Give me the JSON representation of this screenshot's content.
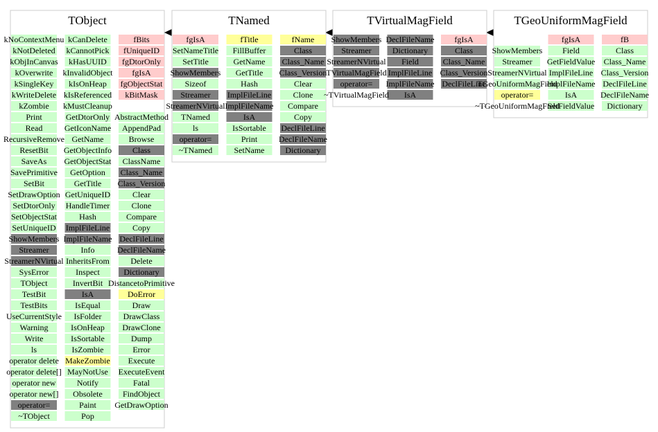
{
  "classes": [
    {
      "title": "TObject",
      "columns": [
        [
          {
            "text": "kNoContextMenu",
            "color": "#ccffcc"
          },
          {
            "text": "kNotDeleted",
            "color": "#ccffcc"
          },
          {
            "text": "kObjInCanvas",
            "color": "#ccffcc"
          },
          {
            "text": "kOverwrite",
            "color": "#ccffcc"
          },
          {
            "text": "kSingleKey",
            "color": "#ccffcc"
          },
          {
            "text": "kWriteDelete",
            "color": "#ccffcc"
          },
          {
            "text": "kZombie",
            "color": "#ccffcc"
          },
          {
            "text": "Print",
            "color": "#ccffcc"
          },
          {
            "text": "Read",
            "color": "#ccffcc"
          },
          {
            "text": "RecursiveRemove",
            "color": "#ccffcc"
          },
          {
            "text": "ResetBit",
            "color": "#ccffcc"
          },
          {
            "text": "SaveAs",
            "color": "#ccffcc"
          },
          {
            "text": "SavePrimitive",
            "color": "#ccffcc"
          },
          {
            "text": "SetBit",
            "color": "#ccffcc"
          },
          {
            "text": "SetDrawOption",
            "color": "#ccffcc"
          },
          {
            "text": "SetDtorOnly",
            "color": "#ccffcc"
          },
          {
            "text": "SetObjectStat",
            "color": "#ccffcc"
          },
          {
            "text": "SetUniqueID",
            "color": "#ccffcc"
          },
          {
            "text": "ShowMembers",
            "color": "#808080"
          },
          {
            "text": "Streamer",
            "color": "#808080"
          },
          {
            "text": "StreamerNVirtual",
            "color": "#808080"
          },
          {
            "text": "SysError",
            "color": "#ccffcc"
          },
          {
            "text": "TObject",
            "color": "#ccffcc"
          },
          {
            "text": "TestBit",
            "color": "#ccffcc"
          },
          {
            "text": "TestBits",
            "color": "#ccffcc"
          },
          {
            "text": "UseCurrentStyle",
            "color": "#ccffcc"
          },
          {
            "text": "Warning",
            "color": "#ccffcc"
          },
          {
            "text": "Write",
            "color": "#ccffcc"
          },
          {
            "text": "ls",
            "color": "#ccffcc"
          },
          {
            "text": "operator delete",
            "color": "#ccffcc"
          },
          {
            "text": "operator delete[]",
            "color": "#ccffcc"
          },
          {
            "text": "operator new",
            "color": "#ccffcc"
          },
          {
            "text": "operator new[]",
            "color": "#ccffcc"
          },
          {
            "text": "operator=",
            "color": "#808080"
          },
          {
            "text": "~TObject",
            "color": "#ccffcc"
          }
        ],
        [
          {
            "text": "kCanDelete",
            "color": "#ccffcc"
          },
          {
            "text": "kCannotPick",
            "color": "#ccffcc"
          },
          {
            "text": "kHasUUID",
            "color": "#ccffcc"
          },
          {
            "text": "kInvalidObject",
            "color": "#ccffcc"
          },
          {
            "text": "kIsOnHeap",
            "color": "#ccffcc"
          },
          {
            "text": "kIsReferenced",
            "color": "#ccffcc"
          },
          {
            "text": "kMustCleanup",
            "color": "#ccffcc"
          },
          {
            "text": "GetDtorOnly",
            "color": "#ccffcc"
          },
          {
            "text": "GetIconName",
            "color": "#ccffcc"
          },
          {
            "text": "GetName",
            "color": "#ccffcc"
          },
          {
            "text": "GetObjectInfo",
            "color": "#ccffcc"
          },
          {
            "text": "GetObjectStat",
            "color": "#ccffcc"
          },
          {
            "text": "GetOption",
            "color": "#ccffcc"
          },
          {
            "text": "GetTitle",
            "color": "#ccffcc"
          },
          {
            "text": "GetUniqueID",
            "color": "#ccffcc"
          },
          {
            "text": "HandleTimer",
            "color": "#ccffcc"
          },
          {
            "text": "Hash",
            "color": "#ccffcc"
          },
          {
            "text": "ImplFileLine",
            "color": "#808080"
          },
          {
            "text": "ImplFileName",
            "color": "#808080"
          },
          {
            "text": "Info",
            "color": "#ccffcc"
          },
          {
            "text": "InheritsFrom",
            "color": "#ccffcc"
          },
          {
            "text": "Inspect",
            "color": "#ccffcc"
          },
          {
            "text": "InvertBit",
            "color": "#ccffcc"
          },
          {
            "text": "IsA",
            "color": "#808080"
          },
          {
            "text": "IsEqual",
            "color": "#ccffcc"
          },
          {
            "text": "IsFolder",
            "color": "#ccffcc"
          },
          {
            "text": "IsOnHeap",
            "color": "#ccffcc"
          },
          {
            "text": "IsSortable",
            "color": "#ccffcc"
          },
          {
            "text": "IsZombie",
            "color": "#ccffcc"
          },
          {
            "text": "MakeZombie",
            "color": "#ffff99"
          },
          {
            "text": "MayNotUse",
            "color": "#ccffcc"
          },
          {
            "text": "Notify",
            "color": "#ccffcc"
          },
          {
            "text": "Obsolete",
            "color": "#ccffcc"
          },
          {
            "text": "Paint",
            "color": "#ccffcc"
          },
          {
            "text": "Pop",
            "color": "#ccffcc"
          }
        ],
        [
          {
            "text": "fBits",
            "color": "#ffcccc"
          },
          {
            "text": "fUniqueID",
            "color": "#ffcccc"
          },
          {
            "text": "fgDtorOnly",
            "color": "#ffcccc"
          },
          {
            "text": "fgIsA",
            "color": "#ffcccc"
          },
          {
            "text": "fgObjectStat",
            "color": "#ffcccc"
          },
          {
            "text": "kBitMask",
            "color": "#ffcccc"
          },
          null,
          {
            "text": "AbstractMethod",
            "color": "#ccffcc"
          },
          {
            "text": "AppendPad",
            "color": "#ccffcc"
          },
          {
            "text": "Browse",
            "color": "#ccffcc"
          },
          {
            "text": "Class",
            "color": "#808080"
          },
          {
            "text": "ClassName",
            "color": "#ccffcc"
          },
          {
            "text": "Class_Name",
            "color": "#808080"
          },
          {
            "text": "Class_Version",
            "color": "#808080"
          },
          {
            "text": "Clear",
            "color": "#ccffcc"
          },
          {
            "text": "Clone",
            "color": "#ccffcc"
          },
          {
            "text": "Compare",
            "color": "#ccffcc"
          },
          {
            "text": "Copy",
            "color": "#ccffcc"
          },
          {
            "text": "DeclFileLine",
            "color": "#808080"
          },
          {
            "text": "DeclFileName",
            "color": "#808080"
          },
          {
            "text": "Delete",
            "color": "#ccffcc"
          },
          {
            "text": "Dictionary",
            "color": "#808080"
          },
          {
            "text": "DistancetoPrimitive",
            "color": "#ccffcc"
          },
          {
            "text": "DoError",
            "color": "#ffff99"
          },
          {
            "text": "Draw",
            "color": "#ccffcc"
          },
          {
            "text": "DrawClass",
            "color": "#ccffcc"
          },
          {
            "text": "DrawClone",
            "color": "#ccffcc"
          },
          {
            "text": "Dump",
            "color": "#ccffcc"
          },
          {
            "text": "Error",
            "color": "#ccffcc"
          },
          {
            "text": "Execute",
            "color": "#ccffcc"
          },
          {
            "text": "ExecuteEvent",
            "color": "#ccffcc"
          },
          {
            "text": "Fatal",
            "color": "#ccffcc"
          },
          {
            "text": "FindObject",
            "color": "#ccffcc"
          },
          {
            "text": "GetDrawOption",
            "color": "#ccffcc"
          }
        ]
      ]
    },
    {
      "title": "TNamed",
      "columns": [
        [
          {
            "text": "fgIsA",
            "color": "#ffcccc"
          },
          {
            "text": "SetNameTitle",
            "color": "#ccffcc"
          },
          {
            "text": "SetTitle",
            "color": "#ccffcc"
          },
          {
            "text": "ShowMembers",
            "color": "#808080"
          },
          {
            "text": "Sizeof",
            "color": "#ccffcc"
          },
          {
            "text": "Streamer",
            "color": "#808080"
          },
          {
            "text": "StreamerNVirtual",
            "color": "#808080"
          },
          {
            "text": "TNamed",
            "color": "#ccffcc"
          },
          {
            "text": "ls",
            "color": "#ccffcc"
          },
          {
            "text": "operator=",
            "color": "#808080"
          },
          {
            "text": "~TNamed",
            "color": "#ccffcc"
          }
        ],
        [
          {
            "text": "fTitle",
            "color": "#ffff99"
          },
          {
            "text": "FillBuffer",
            "color": "#ccffcc"
          },
          {
            "text": "GetName",
            "color": "#ccffcc"
          },
          {
            "text": "GetTitle",
            "color": "#ccffcc"
          },
          {
            "text": "Hash",
            "color": "#ccffcc"
          },
          {
            "text": "ImplFileLine",
            "color": "#808080"
          },
          {
            "text": "ImplFileName",
            "color": "#808080"
          },
          {
            "text": "IsA",
            "color": "#808080"
          },
          {
            "text": "IsSortable",
            "color": "#ccffcc"
          },
          {
            "text": "Print",
            "color": "#ccffcc"
          },
          {
            "text": "SetName",
            "color": "#ccffcc"
          }
        ],
        [
          {
            "text": "fName",
            "color": "#ffff99"
          },
          {
            "text": "Class",
            "color": "#808080"
          },
          {
            "text": "Class_Name",
            "color": "#808080"
          },
          {
            "text": "Class_Version",
            "color": "#808080"
          },
          {
            "text": "Clear",
            "color": "#ccffcc"
          },
          {
            "text": "Clone",
            "color": "#ccffcc"
          },
          {
            "text": "Compare",
            "color": "#ccffcc"
          },
          {
            "text": "Copy",
            "color": "#ccffcc"
          },
          {
            "text": "DeclFileLine",
            "color": "#808080"
          },
          {
            "text": "DeclFileName",
            "color": "#808080"
          },
          {
            "text": "Dictionary",
            "color": "#808080"
          }
        ]
      ]
    },
    {
      "title": "TVirtualMagField",
      "columns": [
        [
          {
            "text": "ShowMembers",
            "color": "#808080"
          },
          {
            "text": "Streamer",
            "color": "#808080"
          },
          {
            "text": "StreamerNVirtual",
            "color": "#808080"
          },
          {
            "text": "TVirtualMagField",
            "color": "#808080"
          },
          {
            "text": "operator=",
            "color": "#808080"
          },
          {
            "text": "~TVirtualMagField",
            "color": "#ffffff"
          }
        ],
        [
          {
            "text": "DeclFileName",
            "color": "#808080"
          },
          {
            "text": "Dictionary",
            "color": "#808080"
          },
          {
            "text": "Field",
            "color": "#808080"
          },
          {
            "text": "ImplFileLine",
            "color": "#808080"
          },
          {
            "text": "ImplFileName",
            "color": "#808080"
          },
          {
            "text": "IsA",
            "color": "#808080"
          }
        ],
        [
          {
            "text": "fgIsA",
            "color": "#ffcccc"
          },
          {
            "text": "Class",
            "color": "#808080"
          },
          {
            "text": "Class_Name",
            "color": "#808080"
          },
          {
            "text": "Class_Version",
            "color": "#808080"
          },
          {
            "text": "DeclFileLine",
            "color": "#808080"
          }
        ]
      ]
    },
    {
      "title": "TGeoUniformMagField",
      "columns": [
        [
          null,
          {
            "text": "ShowMembers",
            "color": "#ccffcc"
          },
          {
            "text": "Streamer",
            "color": "#ccffcc"
          },
          {
            "text": "StreamerNVirtual",
            "color": "#ccffcc"
          },
          {
            "text": "TGeoUniformMagField",
            "color": "#ccffcc"
          },
          {
            "text": "operator=",
            "color": "#ffff99"
          },
          {
            "text": "~TGeoUniformMagField",
            "color": "#ffffff"
          }
        ],
        [
          {
            "text": "fgIsA",
            "color": "#ffcccc"
          },
          {
            "text": "Field",
            "color": "#ccffcc"
          },
          {
            "text": "GetFieldValue",
            "color": "#ccffcc"
          },
          {
            "text": "ImplFileLine",
            "color": "#ccffcc"
          },
          {
            "text": "ImplFileName",
            "color": "#ccffcc"
          },
          {
            "text": "IsA",
            "color": "#ccffcc"
          },
          {
            "text": "SetFieldValue",
            "color": "#ccffcc"
          }
        ],
        [
          {
            "text": "fB",
            "color": "#ffcccc"
          },
          {
            "text": "Class",
            "color": "#ccffcc"
          },
          {
            "text": "Class_Name",
            "color": "#ccffcc"
          },
          {
            "text": "Class_Version",
            "color": "#ccffcc"
          },
          {
            "text": "DeclFileLine",
            "color": "#ccffcc"
          },
          {
            "text": "DeclFileName",
            "color": "#ccffcc"
          },
          {
            "text": "Dictionary",
            "color": "#ccffcc"
          }
        ]
      ]
    }
  ]
}
